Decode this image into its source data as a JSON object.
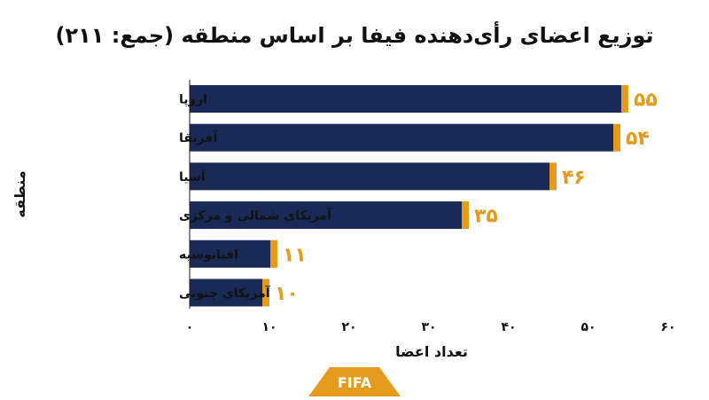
{
  "chart_data": {
    "type": "bar",
    "orientation": "horizontal",
    "title": "توزیع اعضای رأی‌دهنده فیفا بر اساس منطقه (جمع: ۲۱۱)",
    "xlabel": "تعداد اعضا",
    "ylabel": "منطقه",
    "categories": [
      "اروپا",
      "آفریقا",
      "آسیا",
      "آمریکای شمالی و مرکزی",
      "اقیانوسیه",
      "آمریکای جنوبی"
    ],
    "values": [
      55,
      54,
      46,
      35,
      11,
      10
    ],
    "value_labels": [
      "۵۵",
      "۵۴",
      "۴۶",
      "۳۵",
      "۱۱",
      "۱۰"
    ],
    "xlim": [
      0,
      60
    ],
    "xticks": [
      0,
      10,
      20,
      30,
      40,
      50,
      60
    ],
    "xtick_labels": [
      "۰",
      "۱۰",
      "۲۰",
      "۳۰",
      "۴۰",
      "۵۰",
      "۶۰"
    ],
    "grid": false,
    "legend": "none"
  },
  "colors": {
    "bar_fill": "#1a2a57",
    "bar_cap": "#e49b1d",
    "value_label": "#e49b1d",
    "text": "#111111",
    "axis": "#1a1a1a"
  },
  "logo": {
    "text": "FIFA",
    "bg": "#e49b1d",
    "fg": "#ffffff"
  }
}
